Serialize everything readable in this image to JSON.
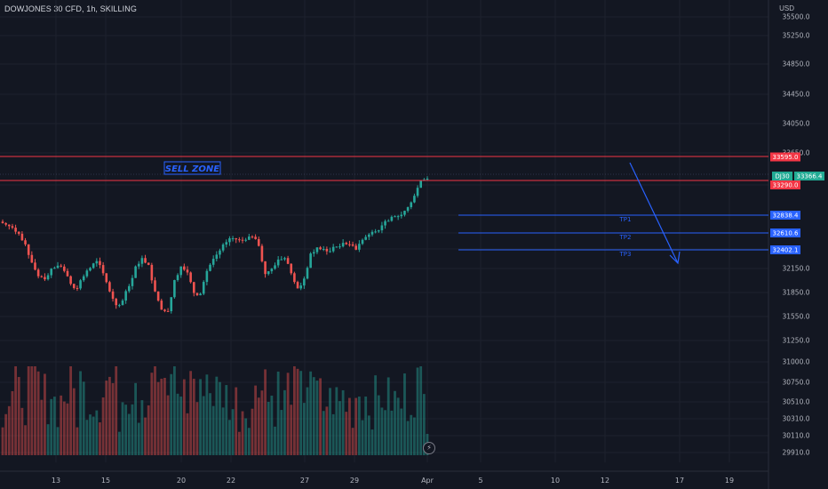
{
  "header": {
    "title": "DOWJONES 30 CFD, 1h, SKILLING",
    "currency": "USD"
  },
  "chart_data": {
    "type": "candlestick",
    "title": "DOWJONES 30 CFD, 1h, SKILLING",
    "ylim": [
      29800,
      35600
    ],
    "price_ticks": [
      35500,
      35250,
      34850,
      34450,
      34050,
      33650,
      33290,
      32838,
      32610,
      32402,
      32150,
      31850,
      31550,
      31250,
      31000,
      30750,
      30510,
      30310,
      30110,
      29910
    ],
    "price_tick_labels": [
      "35500.0",
      "35250.0",
      "34850.0",
      "34450.0",
      "34050.0",
      "33650.0",
      "33290.0",
      "32838.4",
      "32610.6",
      "32402.1",
      "32150.0",
      "31850.0",
      "31550.0",
      "31250.0",
      "31000.0",
      "30750.0",
      "30510.0",
      "30310.0",
      "30110.0",
      "29910.0"
    ],
    "date_ticks": [
      "13",
      "15",
      "20",
      "22",
      "27",
      "29",
      "Apr",
      "5",
      "10",
      "12",
      "17",
      "19"
    ],
    "approx_series": {
      "close": [
        32760,
        32720,
        32640,
        32500,
        32260,
        32080,
        32040,
        32180,
        32220,
        32150,
        31980,
        31920,
        32080,
        32190,
        32280,
        32120,
        31880,
        31700,
        31760,
        31950,
        32210,
        32320,
        32230,
        31880,
        31640,
        31620,
        32030,
        32210,
        32130,
        31860,
        31850,
        32150,
        32310,
        32420,
        32530,
        32580,
        32560,
        32560,
        32600,
        32480,
        32110,
        32180,
        32300,
        32320,
        32120,
        31920,
        32050,
        32380,
        32460,
        32440,
        32410,
        32470,
        32520,
        32500,
        32430,
        32560,
        32630,
        32670,
        32750,
        32810,
        32870,
        32890,
        32990,
        33140,
        33340,
        33366
      ]
    },
    "levels": {
      "sell_zone_top": 33595.0,
      "sell_zone_bottom": 33290.0,
      "last_price": 33366.4,
      "tp1": 32838.4,
      "tp2": 32610.6,
      "tp3": 32402.1
    },
    "price_labels": {
      "sell_zone_top": "33595.0",
      "sell_zone_bottom": "33290.0",
      "last_price": "33366.4",
      "symbol": "DJ30",
      "tp1": "32838.4",
      "tp2": "32610.6",
      "tp3": "32402.1"
    },
    "annotations": {
      "sell_zone": "SELL ZONE",
      "tp1": "TP1",
      "tp2": "TP2",
      "tp3": "TP3"
    },
    "colors": {
      "up": "#26a69a",
      "down": "#ef5350",
      "sell_line": "#f23645",
      "tp_line": "#2962ff",
      "sell_text": "#2962ff",
      "symbol_badge": "#22ab94"
    },
    "grid": true,
    "legend": "none"
  }
}
